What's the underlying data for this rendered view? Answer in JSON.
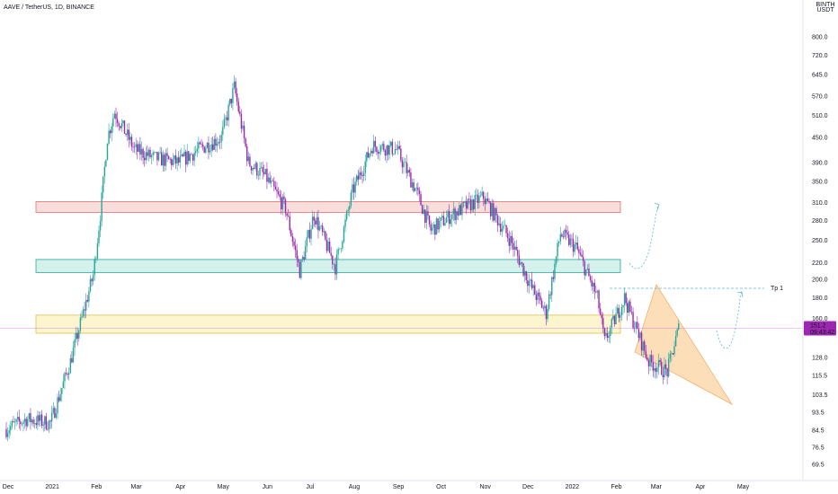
{
  "header": {
    "symbol_title": "AAVE / TetherUS, 1D, BINANCE"
  },
  "price_axis": {
    "currency_line1": "BINTH",
    "currency_line2": "USDT",
    "ticks": [
      "800.0",
      "720.0",
      "645.0",
      "570.0",
      "510.0",
      "450.0",
      "390.0",
      "350.0",
      "310.0",
      "280.0",
      "250.0",
      "220.0",
      "200.0",
      "180.0",
      "160.0",
      "128.0",
      "115.5",
      "103.5",
      "93.5",
      "84.5",
      "76.5",
      "69.5"
    ],
    "last_price": "151.2",
    "countdown": "09:43:42",
    "last_price_color": "#9c27b0"
  },
  "time_axis": {
    "labels": [
      "Dec",
      "2021",
      "Feb",
      "Mar",
      "Apr",
      "May",
      "Jun",
      "Jul",
      "Aug",
      "Sep",
      "Oct",
      "Nov",
      "Dec",
      "2022",
      "Feb",
      "Mar",
      "Apr",
      "May"
    ]
  },
  "colors": {
    "up": "#26a69a",
    "down": "#9c27b0",
    "zone_resistance": "#f8d7d4",
    "zone_middle": "#cdeee8",
    "zone_support": "#fdf3c4",
    "wedge": "#fbd7a8",
    "projection": "#5fb8d6",
    "last_price_line": "#e040fb"
  },
  "annotations": {
    "target_label": "Tp 1"
  },
  "chart_data": {
    "type": "candlestick",
    "title": "AAVE / TetherUS, 1D, BINANCE",
    "scale": "log",
    "ylim": [
      66,
      900
    ],
    "x_range": [
      "2020-12-01",
      "2022-05-31"
    ],
    "ohlc_approx": [
      {
        "date": "2020-12-01",
        "close": 85
      },
      {
        "date": "2020-12-15",
        "close": 90
      },
      {
        "date": "2021-01-01",
        "close": 88
      },
      {
        "date": "2021-01-15",
        "close": 125
      },
      {
        "date": "2021-01-31",
        "close": 205
      },
      {
        "date": "2021-02-05",
        "close": 290
      },
      {
        "date": "2021-02-10",
        "close": 450
      },
      {
        "date": "2021-02-15",
        "close": 520
      },
      {
        "date": "2021-03-01",
        "close": 420
      },
      {
        "date": "2021-03-15",
        "close": 400
      },
      {
        "date": "2021-04-01",
        "close": 390
      },
      {
        "date": "2021-04-15",
        "close": 420
      },
      {
        "date": "2021-05-01",
        "close": 450
      },
      {
        "date": "2021-05-10",
        "close": 600
      },
      {
        "date": "2021-05-20",
        "close": 390
      },
      {
        "date": "2021-06-01",
        "close": 360
      },
      {
        "date": "2021-06-15",
        "close": 300
      },
      {
        "date": "2021-06-25",
        "close": 210
      },
      {
        "date": "2021-07-05",
        "close": 290
      },
      {
        "date": "2021-07-20",
        "close": 215
      },
      {
        "date": "2021-08-01",
        "close": 330
      },
      {
        "date": "2021-08-15",
        "close": 430
      },
      {
        "date": "2021-09-01",
        "close": 420
      },
      {
        "date": "2021-09-15",
        "close": 330
      },
      {
        "date": "2021-09-25",
        "close": 265
      },
      {
        "date": "2021-10-10",
        "close": 290
      },
      {
        "date": "2021-11-01",
        "close": 320
      },
      {
        "date": "2021-11-20",
        "close": 250
      },
      {
        "date": "2021-12-05",
        "close": 190
      },
      {
        "date": "2021-12-15",
        "close": 165
      },
      {
        "date": "2021-12-25",
        "close": 260
      },
      {
        "date": "2022-01-05",
        "close": 240
      },
      {
        "date": "2022-01-20",
        "close": 180
      },
      {
        "date": "2022-01-25",
        "close": 140
      },
      {
        "date": "2022-02-08",
        "close": 180
      },
      {
        "date": "2022-02-25",
        "close": 125
      },
      {
        "date": "2022-03-10",
        "close": 118
      },
      {
        "date": "2022-03-18",
        "close": 151.2
      }
    ],
    "zones": [
      {
        "name": "resistance",
        "low": 293,
        "high": 312
      },
      {
        "name": "middle",
        "low": 208,
        "high": 224
      },
      {
        "name": "support",
        "low": 147,
        "high": 163
      }
    ],
    "target_level": {
      "label": "Tp 1",
      "price": 190
    },
    "last_price": 151.2
  }
}
